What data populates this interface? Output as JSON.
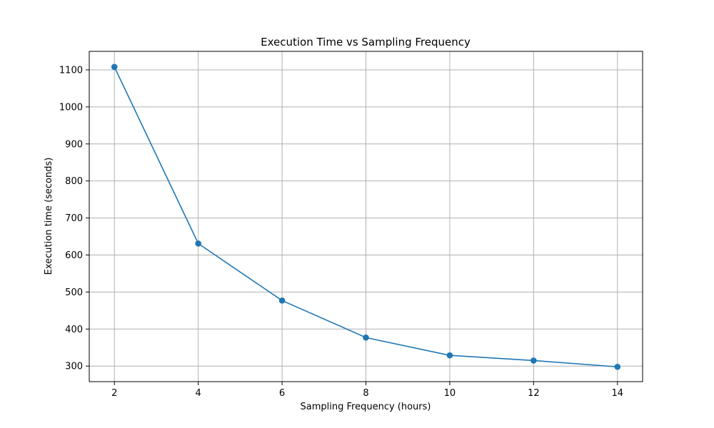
{
  "chart_data": {
    "type": "line",
    "title": "Execution Time vs Sampling Frequency",
    "xlabel": "Sampling Frequency (hours)",
    "ylabel": "Execution time (seconds)",
    "x": [
      2,
      4,
      6,
      8,
      10,
      12,
      14
    ],
    "series": [
      {
        "values": [
          1108,
          631,
          477,
          377,
          329,
          315,
          298
        ],
        "color": "#1f77b4",
        "marker": "circle"
      }
    ],
    "xticks": [
      2,
      4,
      6,
      8,
      10,
      12,
      14
    ],
    "yticks": [
      300,
      400,
      500,
      600,
      700,
      800,
      900,
      1000,
      1100
    ],
    "xlim": [
      1.4,
      14.6
    ],
    "ylim": [
      258,
      1150
    ],
    "grid": true
  }
}
